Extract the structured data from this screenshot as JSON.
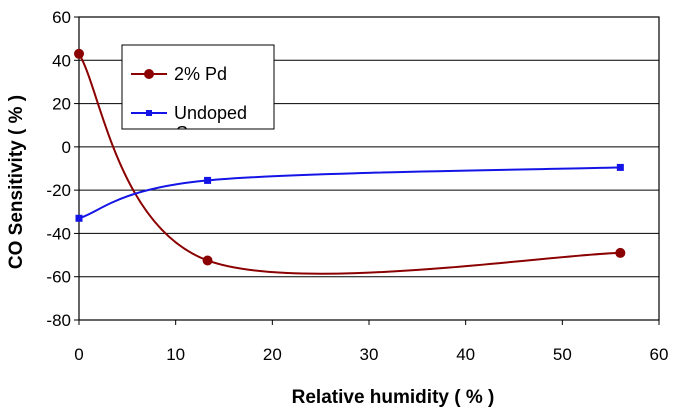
{
  "chart_data": {
    "type": "line",
    "title": "",
    "xlabel": "Relative humidity ( % )",
    "ylabel": "CO Sensitivity ( % )",
    "xlim": [
      0,
      60
    ],
    "ylim": [
      -80,
      60
    ],
    "x_ticks": [
      "0",
      "10",
      "20",
      "30",
      "40",
      "50",
      "60"
    ],
    "y_ticks": [
      "60",
      "40",
      "20",
      "0",
      "-20",
      "-40",
      "-60",
      "-80"
    ],
    "x_tick_values": [
      0,
      10,
      20,
      30,
      40,
      50,
      60
    ],
    "y_tick_values": [
      60,
      40,
      20,
      0,
      -20,
      -40,
      -60,
      -80
    ],
    "grid": "horizontal",
    "smoothed": true,
    "legend_position": "top-left",
    "series": [
      {
        "name": "2% Pd",
        "color": "#8B0000",
        "marker": "circle",
        "points": [
          [
            0,
            43
          ],
          [
            13.3,
            -52.5
          ],
          [
            56,
            -49
          ]
        ]
      },
      {
        "name": "Undoped",
        "legend_extra": "S",
        "color": "#1414E6",
        "marker": "square",
        "points": [
          [
            0,
            -33
          ],
          [
            13.3,
            -15.5
          ],
          [
            56,
            -9.5
          ]
        ]
      }
    ]
  }
}
